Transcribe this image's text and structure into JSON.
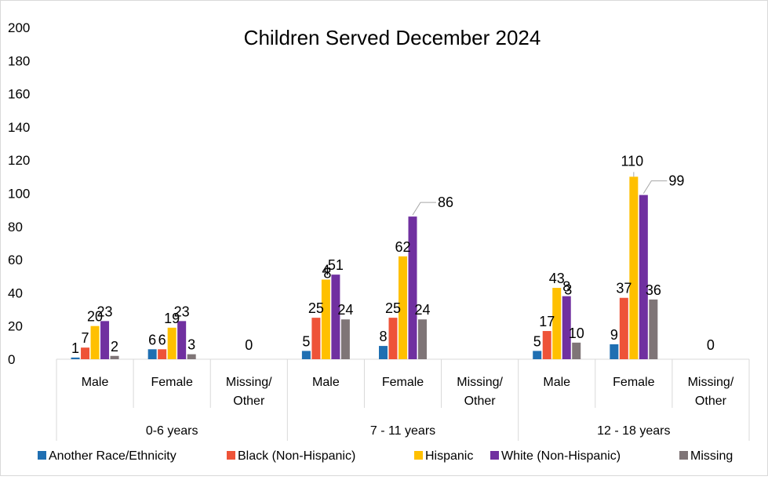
{
  "chart_data": {
    "type": "bar",
    "title": "Children Served December 2024",
    "ylim": [
      0,
      200
    ],
    "yticks": [
      0,
      20,
      40,
      60,
      80,
      100,
      120,
      140,
      160,
      180,
      200
    ],
    "grid": false,
    "legend_position": "bottom",
    "groups": [
      {
        "label": "0-6 years",
        "categories": [
          "Male",
          "Female",
          "Missing/\nOther"
        ]
      },
      {
        "label": "7 - 11 years",
        "categories": [
          "Male",
          "Female",
          "Missing/\nOther"
        ]
      },
      {
        "label": "12 - 18 years",
        "categories": [
          "Male",
          "Female",
          "Missing/\nOther"
        ]
      }
    ],
    "categories": [
      "Male",
      "Female",
      "Missing/\nOther",
      "Male",
      "Female",
      "Missing/\nOther",
      "Male",
      "Female",
      "Missing/\nOther"
    ],
    "series": [
      {
        "name": "Another Race/Ethnicity",
        "color": "#1f6fb2",
        "values": [
          1,
          6,
          null,
          5,
          8,
          null,
          5,
          9,
          null
        ]
      },
      {
        "name": "Black (Non-Hispanic)",
        "color": "#ee5338",
        "values": [
          7,
          6,
          null,
          25,
          25,
          null,
          17,
          37,
          null
        ]
      },
      {
        "name": "Hispanic",
        "color": "#ffc000",
        "values": [
          20,
          19,
          null,
          48,
          62,
          null,
          43,
          110,
          null
        ]
      },
      {
        "name": "White (Non-Hispanic)",
        "color": "#7030a0",
        "values": [
          23,
          23,
          null,
          51,
          86,
          null,
          38,
          99,
          null
        ]
      },
      {
        "name": "Missing",
        "color": "#7f7577",
        "values": [
          2,
          3,
          null,
          24,
          24,
          null,
          10,
          36,
          null
        ]
      }
    ],
    "category_totals": [
      "",
      "",
      "0",
      "",
      "",
      "",
      "",
      "",
      "0"
    ],
    "data_labels": [
      [
        "1",
        "6",
        "",
        "5",
        "8",
        "",
        "5",
        "9",
        ""
      ],
      [
        "7",
        "6",
        "",
        "25",
        "25",
        "",
        "17",
        "37",
        ""
      ],
      [
        "20",
        "19",
        "",
        "4",
        "62",
        "",
        "43",
        "110",
        ""
      ],
      [
        "23",
        "23",
        "",
        "51",
        "86",
        "",
        "8",
        "99",
        ""
      ],
      [
        "2",
        "3",
        "",
        "24",
        "24",
        "",
        "10",
        "36",
        ""
      ]
    ],
    "label_annotations": [
      {
        "series": 2,
        "category": 3,
        "text": "8"
      },
      {
        "series": 3,
        "category": 6,
        "text": "3"
      }
    ]
  }
}
